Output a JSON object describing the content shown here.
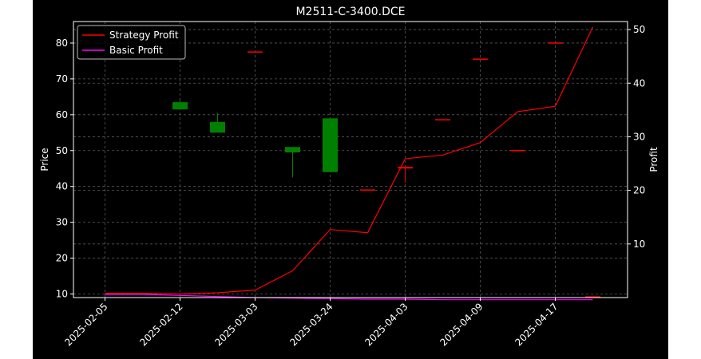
{
  "chart_data": {
    "type": "candlestick+line",
    "title": "M2511-C-3400.DCE",
    "xlabel": "",
    "ylabel_left": "Price",
    "ylabel_right": "Profit",
    "x_ticks": [
      "2025-02-05",
      "2025-02-12",
      "2025-03-03",
      "2025-03-24",
      "2025-04-03",
      "2025-04-09",
      "2025-04-17"
    ],
    "ylim_left": [
      9,
      86
    ],
    "yticks_left": [
      10,
      20,
      30,
      40,
      50,
      60,
      70,
      80
    ],
    "ylim_right": [
      0,
      51.5
    ],
    "yticks_right": [
      10,
      20,
      30,
      40,
      50
    ],
    "grid": true,
    "legend_position": "upper-left",
    "candles": [
      {
        "x": 2,
        "open": 61.5,
        "close": 63.5,
        "high": 64.0,
        "low": 61.5,
        "color": "green"
      },
      {
        "x": 3,
        "open": 55.0,
        "close": 58.0,
        "high": 60.5,
        "low": 55.0,
        "color": "green"
      },
      {
        "x": 4,
        "open": 77.5,
        "close": 77.5,
        "high": 77.5,
        "low": 77.5,
        "color": "red"
      },
      {
        "x": 5,
        "open": 49.5,
        "close": 51.0,
        "high": 51.0,
        "low": 42.5,
        "color": "green"
      },
      {
        "x": 6,
        "open": 44.0,
        "close": 59.0,
        "high": 59.0,
        "low": 44.0,
        "color": "green"
      },
      {
        "x": 7,
        "open": 39.0,
        "close": 38.8,
        "high": 39.0,
        "low": 38.8,
        "color": "red"
      },
      {
        "x": 8,
        "open": 45.5,
        "close": 45.0,
        "high": 45.5,
        "low": 41.0,
        "color": "red"
      },
      {
        "x": 9,
        "open": 58.6,
        "close": 58.6,
        "high": 58.6,
        "low": 58.6,
        "color": "red"
      },
      {
        "x": 10,
        "open": 75.5,
        "close": 75.5,
        "high": 75.5,
        "low": 75.5,
        "color": "red"
      },
      {
        "x": 11,
        "open": 50.0,
        "close": 50.0,
        "high": 50.0,
        "low": 50.0,
        "color": "red"
      },
      {
        "x": 12,
        "open": 80.0,
        "close": 80.0,
        "high": 80.0,
        "low": 80.0,
        "color": "red"
      },
      {
        "x": 13,
        "open": 9.2,
        "close": 9.2,
        "high": 9.2,
        "low": 9.2,
        "color": "red"
      }
    ],
    "series": [
      {
        "name": "Strategy Profit",
        "color": "#ff0000",
        "x": [
          0,
          1,
          2,
          3,
          4,
          5,
          6,
          7,
          8,
          9,
          10,
          11,
          12,
          13
        ],
        "values": [
          0.8,
          0.8,
          0.7,
          0.9,
          1.4,
          5.0,
          12.7,
          12.1,
          25.9,
          26.6,
          28.9,
          34.7,
          35.7,
          50.5
        ]
      },
      {
        "name": "Basic Profit",
        "color": "#ff00ff",
        "x": [
          0,
          1,
          2,
          3,
          4,
          5,
          6,
          7,
          8,
          9,
          10,
          11,
          12,
          13
        ],
        "values": [
          0.6,
          0.6,
          0.4,
          0.2,
          0.0,
          -0.1,
          -0.2,
          -0.3,
          -0.3,
          -0.4,
          -0.4,
          -0.4,
          -0.4,
          -0.4
        ]
      }
    ]
  }
}
